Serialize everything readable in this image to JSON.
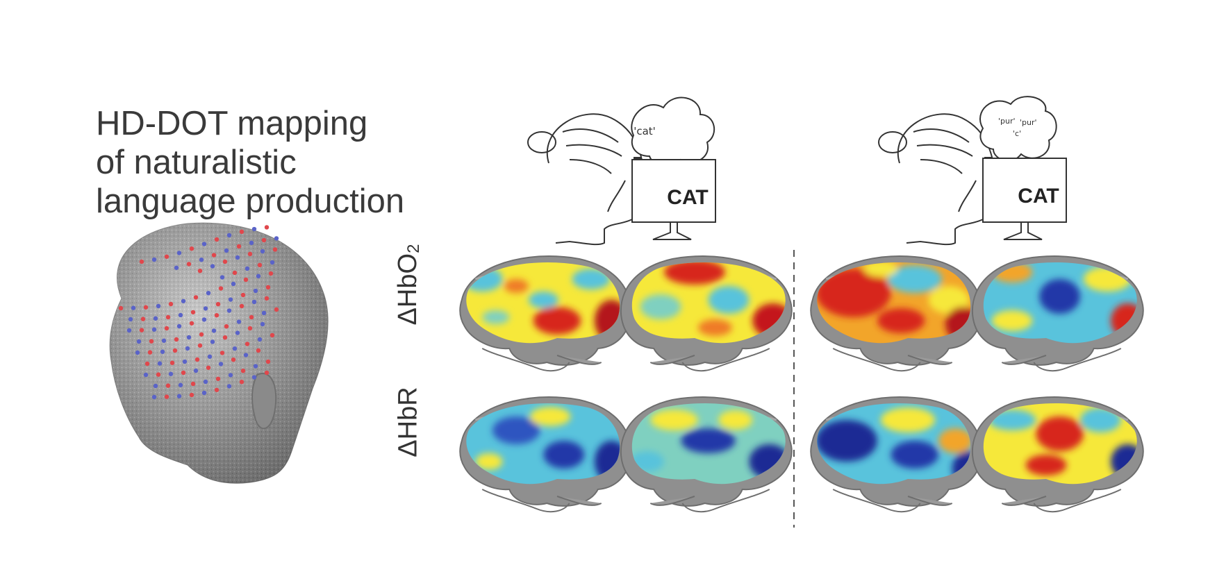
{
  "title_lines": [
    "HD-DOT mapping",
    "of naturalistic",
    "language production"
  ],
  "panel_a": {
    "thought": "'cat'",
    "screen_word": "CAT"
  },
  "panel_b": {
    "thought_words": [
      "'pur'",
      "'pur'",
      "'c'"
    ],
    "screen_word": "CAT"
  },
  "row_labels": {
    "hbo2_main": "ΔHbO",
    "hbo2_sub": "2",
    "hbr": "ΔHbR"
  },
  "colors": {
    "source_dot": "#e0474c",
    "detector_dot": "#5a63c8",
    "brain_gray": "#8f8f8f",
    "activation_red": "#d7261e",
    "activation_yellow": "#f6e83a",
    "activation_cyan": "#59c3dc",
    "activation_blue": "#2438a8"
  }
}
